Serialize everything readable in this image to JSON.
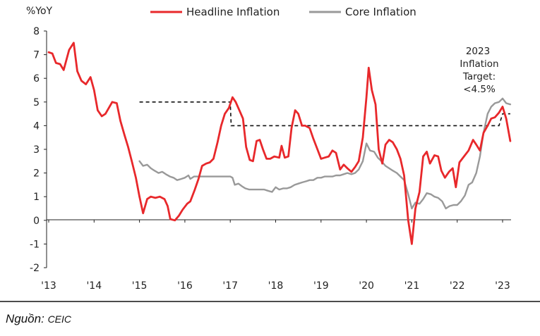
{
  "chart_data": {
    "type": "line",
    "ylabel": "%YoY",
    "ylim": [
      -2,
      8
    ],
    "yticks": [
      "-2",
      "-1",
      "0",
      "1",
      "2",
      "3",
      "4",
      "5",
      "6",
      "7",
      "8"
    ],
    "xlim": [
      2013,
      2023.3
    ],
    "xticks": [
      {
        "label": "'13",
        "x": 2013
      },
      {
        "label": "'14",
        "x": 2014
      },
      {
        "label": "'15",
        "x": 2015
      },
      {
        "label": "'16",
        "x": 2016
      },
      {
        "label": "'17",
        "x": 2017
      },
      {
        "label": "'18",
        "x": 2018
      },
      {
        "label": "'19",
        "x": 2019
      },
      {
        "label": "'20",
        "x": 2020
      },
      {
        "label": "'21",
        "x": 2021
      },
      {
        "label": "'22",
        "x": 2022
      },
      {
        "label": "'23",
        "x": 2023
      }
    ],
    "grid": false,
    "legend": "top",
    "annotation": [
      "2023",
      "Inflation",
      "Target:",
      "<4.5%"
    ],
    "series": [
      {
        "name": "Headline Inflation",
        "color": "#e8282b",
        "points": [
          [
            2013.0,
            7.1
          ],
          [
            2013.08,
            7.05
          ],
          [
            2013.16,
            6.65
          ],
          [
            2013.25,
            6.6
          ],
          [
            2013.33,
            6.35
          ],
          [
            2013.45,
            7.2
          ],
          [
            2013.55,
            7.5
          ],
          [
            2013.63,
            6.3
          ],
          [
            2013.72,
            5.9
          ],
          [
            2013.82,
            5.75
          ],
          [
            2013.92,
            6.05
          ],
          [
            2014.0,
            5.5
          ],
          [
            2014.08,
            4.65
          ],
          [
            2014.17,
            4.4
          ],
          [
            2014.25,
            4.5
          ],
          [
            2014.4,
            5.0
          ],
          [
            2014.5,
            4.95
          ],
          [
            2014.58,
            4.2
          ],
          [
            2014.67,
            3.6
          ],
          [
            2014.75,
            3.1
          ],
          [
            2014.83,
            2.5
          ],
          [
            2014.92,
            1.8
          ],
          [
            2015.0,
            1.0
          ],
          [
            2015.08,
            0.3
          ],
          [
            2015.17,
            0.9
          ],
          [
            2015.25,
            1.0
          ],
          [
            2015.35,
            0.95
          ],
          [
            2015.45,
            1.0
          ],
          [
            2015.55,
            0.9
          ],
          [
            2015.62,
            0.6
          ],
          [
            2015.68,
            0.05
          ],
          [
            2015.78,
            0.0
          ],
          [
            2015.87,
            0.2
          ],
          [
            2015.95,
            0.45
          ],
          [
            2016.05,
            0.7
          ],
          [
            2016.12,
            0.8
          ],
          [
            2016.22,
            1.3
          ],
          [
            2016.3,
            1.75
          ],
          [
            2016.38,
            2.3
          ],
          [
            2016.47,
            2.4
          ],
          [
            2016.55,
            2.45
          ],
          [
            2016.63,
            2.6
          ],
          [
            2016.72,
            3.3
          ],
          [
            2016.8,
            4.0
          ],
          [
            2016.88,
            4.5
          ],
          [
            2016.97,
            4.75
          ],
          [
            2017.05,
            5.2
          ],
          [
            2017.12,
            5.0
          ],
          [
            2017.2,
            4.65
          ],
          [
            2017.28,
            4.3
          ],
          [
            2017.35,
            3.1
          ],
          [
            2017.43,
            2.55
          ],
          [
            2017.5,
            2.5
          ],
          [
            2017.58,
            3.35
          ],
          [
            2017.65,
            3.4
          ],
          [
            2017.72,
            3.0
          ],
          [
            2017.8,
            2.6
          ],
          [
            2017.88,
            2.6
          ],
          [
            2017.97,
            2.7
          ],
          [
            2018.08,
            2.65
          ],
          [
            2018.13,
            3.15
          ],
          [
            2018.2,
            2.65
          ],
          [
            2018.28,
            2.7
          ],
          [
            2018.35,
            3.9
          ],
          [
            2018.43,
            4.65
          ],
          [
            2018.5,
            4.5
          ],
          [
            2018.58,
            4.0
          ],
          [
            2018.65,
            4.0
          ],
          [
            2018.75,
            3.9
          ],
          [
            2018.83,
            3.45
          ],
          [
            2018.92,
            3.0
          ],
          [
            2019.0,
            2.6
          ],
          [
            2019.08,
            2.65
          ],
          [
            2019.17,
            2.7
          ],
          [
            2019.25,
            2.95
          ],
          [
            2019.33,
            2.85
          ],
          [
            2019.42,
            2.15
          ],
          [
            2019.5,
            2.35
          ],
          [
            2019.58,
            2.2
          ],
          [
            2019.67,
            2.05
          ],
          [
            2019.75,
            2.25
          ],
          [
            2019.83,
            2.5
          ],
          [
            2019.92,
            3.5
          ],
          [
            2020.0,
            5.2
          ],
          [
            2020.05,
            6.45
          ],
          [
            2020.12,
            5.5
          ],
          [
            2020.2,
            4.9
          ],
          [
            2020.27,
            3.0
          ],
          [
            2020.35,
            2.4
          ],
          [
            2020.42,
            3.2
          ],
          [
            2020.5,
            3.4
          ],
          [
            2020.58,
            3.3
          ],
          [
            2020.67,
            3.0
          ],
          [
            2020.75,
            2.6
          ],
          [
            2020.83,
            1.9
          ],
          [
            2020.92,
            0.0
          ],
          [
            2021.0,
            -1.0
          ],
          [
            2021.08,
            0.5
          ],
          [
            2021.17,
            1.2
          ],
          [
            2021.25,
            2.7
          ],
          [
            2021.33,
            2.9
          ],
          [
            2021.4,
            2.4
          ],
          [
            2021.5,
            2.75
          ],
          [
            2021.58,
            2.7
          ],
          [
            2021.65,
            2.1
          ],
          [
            2021.73,
            1.8
          ],
          [
            2021.82,
            2.05
          ],
          [
            2021.9,
            2.2
          ],
          [
            2021.97,
            1.4
          ],
          [
            2022.05,
            2.45
          ],
          [
            2022.15,
            2.7
          ],
          [
            2022.25,
            2.95
          ],
          [
            2022.35,
            3.4
          ],
          [
            2022.42,
            3.2
          ],
          [
            2022.5,
            2.95
          ],
          [
            2022.58,
            3.7
          ],
          [
            2022.67,
            4.0
          ],
          [
            2022.75,
            4.3
          ],
          [
            2022.83,
            4.35
          ],
          [
            2022.92,
            4.55
          ],
          [
            2023.0,
            4.8
          ],
          [
            2023.08,
            4.3
          ],
          [
            2023.17,
            3.35
          ]
        ]
      },
      {
        "name": "Core Inflation",
        "color": "#999999",
        "points": [
          [
            2015.0,
            2.5
          ],
          [
            2015.08,
            2.3
          ],
          [
            2015.17,
            2.35
          ],
          [
            2015.25,
            2.2
          ],
          [
            2015.33,
            2.1
          ],
          [
            2015.42,
            2.0
          ],
          [
            2015.5,
            2.05
          ],
          [
            2015.58,
            1.95
          ],
          [
            2015.67,
            1.85
          ],
          [
            2015.75,
            1.8
          ],
          [
            2015.83,
            1.7
          ],
          [
            2015.92,
            1.75
          ],
          [
            2016.0,
            1.8
          ],
          [
            2016.08,
            1.9
          ],
          [
            2016.12,
            1.75
          ],
          [
            2016.2,
            1.85
          ],
          [
            2016.3,
            1.85
          ],
          [
            2016.4,
            1.85
          ],
          [
            2016.5,
            1.85
          ],
          [
            2016.6,
            1.85
          ],
          [
            2016.7,
            1.85
          ],
          [
            2016.8,
            1.85
          ],
          [
            2016.9,
            1.85
          ],
          [
            2017.0,
            1.85
          ],
          [
            2017.05,
            1.8
          ],
          [
            2017.1,
            1.5
          ],
          [
            2017.18,
            1.55
          ],
          [
            2017.25,
            1.45
          ],
          [
            2017.33,
            1.35
          ],
          [
            2017.42,
            1.3
          ],
          [
            2017.5,
            1.3
          ],
          [
            2017.58,
            1.3
          ],
          [
            2017.67,
            1.3
          ],
          [
            2017.75,
            1.3
          ],
          [
            2017.83,
            1.25
          ],
          [
            2017.92,
            1.2
          ],
          [
            2018.0,
            1.4
          ],
          [
            2018.08,
            1.3
          ],
          [
            2018.17,
            1.35
          ],
          [
            2018.25,
            1.35
          ],
          [
            2018.33,
            1.4
          ],
          [
            2018.42,
            1.5
          ],
          [
            2018.5,
            1.55
          ],
          [
            2018.58,
            1.6
          ],
          [
            2018.67,
            1.65
          ],
          [
            2018.75,
            1.7
          ],
          [
            2018.83,
            1.7
          ],
          [
            2018.92,
            1.8
          ],
          [
            2019.0,
            1.8
          ],
          [
            2019.08,
            1.85
          ],
          [
            2019.17,
            1.85
          ],
          [
            2019.25,
            1.85
          ],
          [
            2019.33,
            1.9
          ],
          [
            2019.42,
            1.9
          ],
          [
            2019.5,
            1.95
          ],
          [
            2019.58,
            2.0
          ],
          [
            2019.67,
            1.95
          ],
          [
            2019.75,
            2.0
          ],
          [
            2019.83,
            2.15
          ],
          [
            2019.92,
            2.5
          ],
          [
            2020.0,
            3.25
          ],
          [
            2020.08,
            2.95
          ],
          [
            2020.17,
            2.9
          ],
          [
            2020.25,
            2.65
          ],
          [
            2020.33,
            2.5
          ],
          [
            2020.42,
            2.3
          ],
          [
            2020.5,
            2.2
          ],
          [
            2020.58,
            2.1
          ],
          [
            2020.67,
            2.0
          ],
          [
            2020.75,
            1.85
          ],
          [
            2020.83,
            1.7
          ],
          [
            2020.92,
            1.1
          ],
          [
            2021.0,
            0.5
          ],
          [
            2021.08,
            0.75
          ],
          [
            2021.17,
            0.7
          ],
          [
            2021.25,
            0.9
          ],
          [
            2021.33,
            1.15
          ],
          [
            2021.42,
            1.1
          ],
          [
            2021.5,
            1.0
          ],
          [
            2021.58,
            0.95
          ],
          [
            2021.67,
            0.8
          ],
          [
            2021.75,
            0.5
          ],
          [
            2021.83,
            0.6
          ],
          [
            2021.92,
            0.65
          ],
          [
            2022.0,
            0.65
          ],
          [
            2022.08,
            0.8
          ],
          [
            2022.17,
            1.05
          ],
          [
            2022.25,
            1.5
          ],
          [
            2022.33,
            1.6
          ],
          [
            2022.42,
            2.0
          ],
          [
            2022.5,
            2.7
          ],
          [
            2022.58,
            3.7
          ],
          [
            2022.67,
            4.5
          ],
          [
            2022.75,
            4.8
          ],
          [
            2022.83,
            4.95
          ],
          [
            2022.92,
            5.0
          ],
          [
            2023.0,
            5.15
          ],
          [
            2023.08,
            4.95
          ],
          [
            2023.17,
            4.9
          ]
        ]
      }
    ],
    "target": {
      "color": "#111111",
      "points": [
        [
          2015.0,
          5.0
        ],
        [
          2017.0,
          5.0
        ],
        [
          2017.02,
          4.0
        ],
        [
          2022.92,
          4.0
        ],
        [
          2023.0,
          4.5
        ],
        [
          2023.17,
          4.5
        ]
      ]
    }
  },
  "source": {
    "label": "Nguồn:",
    "value": "CEIC"
  }
}
